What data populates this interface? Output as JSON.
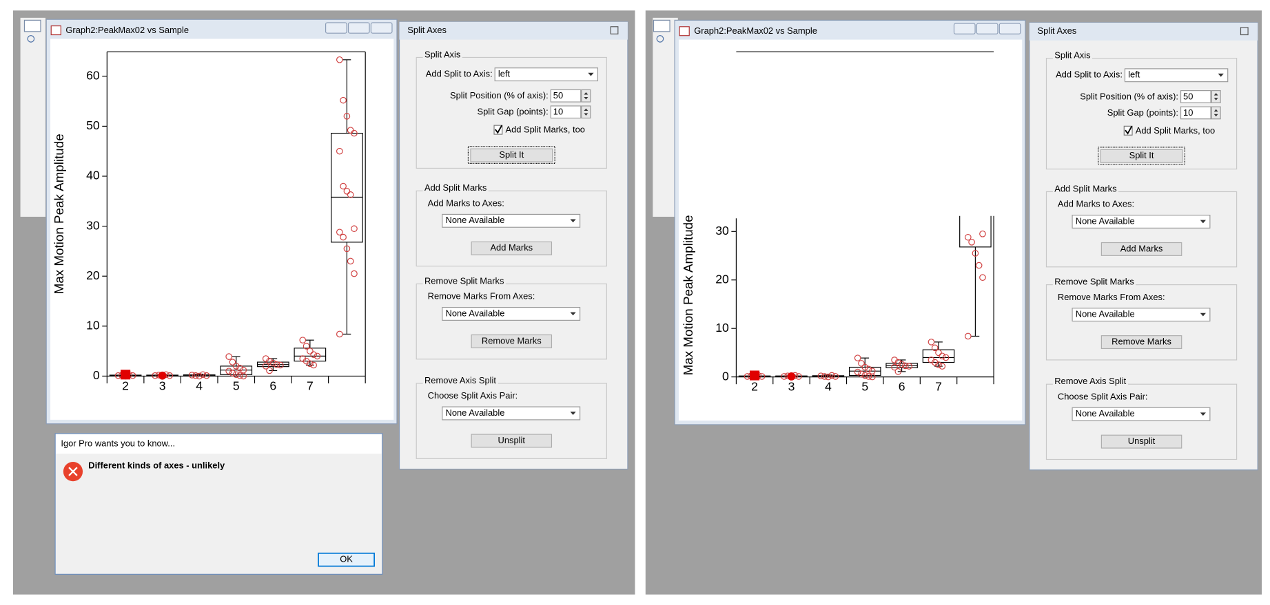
{
  "graph_data": {
    "categories": [
      "2",
      "3",
      "4",
      "5",
      "6",
      "7",
      null
    ],
    "boxes": [
      {
        "min": 0,
        "q1": 0.05,
        "median": 0.1,
        "q3": 0.2,
        "max": 0.5,
        "points": [
          0.1,
          0.2,
          0,
          0.3,
          0.1
        ],
        "highlight": {
          "value": 0.3,
          "marker": "square"
        }
      },
      {
        "min": 0,
        "q1": 0.05,
        "median": 0.1,
        "q3": 0.2,
        "max": 0.4,
        "points": [
          0.1,
          0.2,
          0,
          0.3,
          0.1
        ],
        "highlight": {
          "value": 0.1,
          "marker": "circle"
        }
      },
      {
        "min": 0,
        "q1": 0.05,
        "median": 0.1,
        "q3": 0.25,
        "max": 0.4,
        "points": [
          0.2,
          0.1,
          0,
          0.3,
          0.1
        ]
      },
      {
        "min": 0,
        "q1": 0.3,
        "median": 1.2,
        "q3": 2,
        "max": 3.9,
        "points": [
          3.9,
          2.8,
          2,
          1.6,
          1.2,
          1,
          0.6,
          0.3,
          0.1,
          0
        ]
      },
      {
        "min": 1.1,
        "q1": 1.9,
        "median": 2.3,
        "q3": 2.8,
        "max": 3.5,
        "points": [
          3.5,
          3,
          2.6,
          2.3,
          2.2,
          2,
          1.1
        ]
      },
      {
        "min": 2.2,
        "q1": 3,
        "median": 4,
        "q3": 5.6,
        "max": 7.2,
        "points": [
          7.2,
          6,
          5,
          4.3,
          4,
          3.5,
          3,
          2.5,
          2.2
        ]
      },
      {
        "min": 8.4,
        "q1": 26.8,
        "median": 35.8,
        "q3": 48.6,
        "max": 63.3,
        "points": [
          63.3,
          55.2,
          52,
          49.2,
          48.6,
          45,
          38,
          37,
          36.3,
          29.5,
          28.8,
          27.8,
          25.5,
          23,
          20.5,
          8.4
        ]
      }
    ],
    "point_color": "#d04040"
  },
  "left": {
    "graph_window": {
      "title": "Graph2:PeakMax02 vs Sample",
      "chart": {
        "type": "box",
        "ylabel": "Max Motion Peak Amplitude",
        "ylim": [
          0,
          64.9
        ],
        "yticks": [
          0,
          10,
          20,
          30,
          40,
          50,
          60
        ]
      }
    },
    "split_axes": {
      "title": "Split Axes",
      "split_axis": {
        "legend": "Split Axis",
        "axis_label": "Add Split to Axis:",
        "axis_value": "left",
        "position_label": "Split Position (% of axis):",
        "position_value": "50",
        "gap_label": "Split Gap (points):",
        "gap_value": "10",
        "marks_checkbox": "Add Split Marks, too",
        "button": "Split It"
      },
      "groups": [
        {
          "legend": "Add Split Marks",
          "label": "Add Marks to Axes:",
          "value": "None Available",
          "button": "Add Marks"
        },
        {
          "legend": "Remove Split Marks",
          "label": "Remove Marks From Axes:",
          "value": "None Available",
          "button": "Remove Marks"
        },
        {
          "legend": "Remove Axis Split",
          "label": "Choose Split Axis Pair:",
          "value": "None Available",
          "button": "Unsplit"
        }
      ]
    },
    "alert": {
      "title": "Igor Pro wants you to know...",
      "message": "Different kinds of axes - unlikely",
      "ok": "OK"
    }
  },
  "right": {
    "graph_window": {
      "title": "Graph2:PeakMax02 vs Sample",
      "chart": {
        "type": "box",
        "ylabel": "Max Motion Peak Amplitude",
        "ylim": [
          0,
          32.7
        ],
        "yticks": [
          0,
          10,
          20,
          30
        ]
      }
    },
    "split_axes": {
      "title": "Split Axes",
      "split_axis": {
        "legend": "Split Axis",
        "axis_label": "Add Split to Axis:",
        "axis_value": "left",
        "position_label": "Split Position (% of axis):",
        "position_value": "50",
        "gap_label": "Split Gap (points):",
        "gap_value": "10",
        "marks_checkbox": "Add Split Marks, too",
        "button": "Split It"
      },
      "groups": [
        {
          "legend": "Add Split Marks",
          "label": "Add Marks to Axes:",
          "value": "None Available",
          "button": "Add Marks"
        },
        {
          "legend": "Remove Split Marks",
          "label": "Remove Marks From Axes:",
          "value": "None Available",
          "button": "Remove Marks"
        },
        {
          "legend": "Remove Axis Split",
          "label": "Choose Split Axis Pair:",
          "value": "None Available",
          "button": "Unsplit"
        }
      ]
    }
  }
}
